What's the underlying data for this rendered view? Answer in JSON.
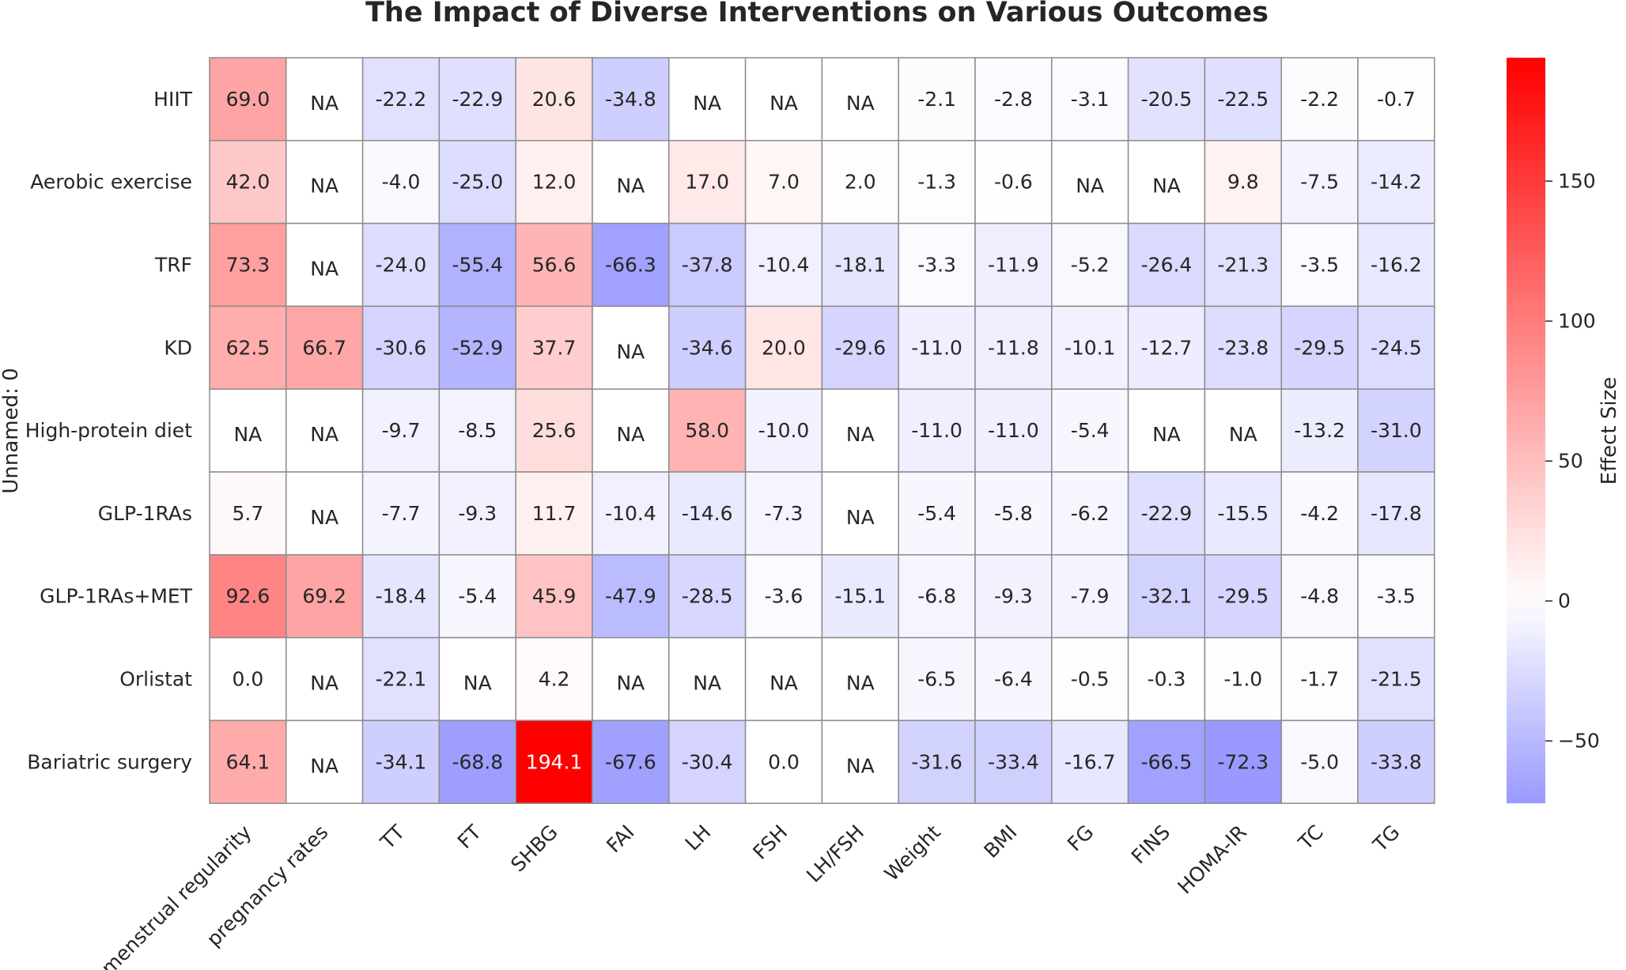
{
  "chart_data": {
    "type": "heatmap",
    "title": "The Impact of Diverse Interventions on Various Outcomes",
    "ylabel": "Unnamed: 0",
    "colorbar_label": "Effect Size",
    "colormap": {
      "min_color": "#9999ff",
      "mid_color": "#ffffff",
      "max_color": "#ff0000"
    },
    "vmin": -72.3,
    "vcenter": 0,
    "vmax": 194.1,
    "colorbar_ticks": [
      -50,
      0,
      50,
      100,
      150
    ],
    "colorbar_tick_labels": [
      "−50",
      "0",
      "50",
      "100",
      "150"
    ],
    "na_label": "NA",
    "columns": [
      "menstrual regularity",
      "pregnancy rates",
      "TT",
      "FT",
      "SHBG",
      "FAI",
      "LH",
      "FSH",
      "LH/FSH",
      "Weight",
      "BMI",
      "FG",
      "FINS",
      "HOMA-IR",
      "TC",
      "TG"
    ],
    "rows": [
      "HIIT",
      "Aerobic exercise",
      "TRF",
      "KD",
      "High-protein diet",
      "GLP-1RAs",
      "GLP-1RAs+MET",
      "Orlistat",
      "Bariatric surgery"
    ],
    "values": [
      [
        69.0,
        null,
        -22.2,
        -22.9,
        20.6,
        -34.8,
        null,
        null,
        null,
        -2.1,
        -2.8,
        -3.1,
        -20.5,
        -22.5,
        -2.2,
        -0.7
      ],
      [
        42.0,
        null,
        -4.0,
        -25.0,
        12.0,
        null,
        17.0,
        7.0,
        2.0,
        -1.3,
        -0.6,
        null,
        null,
        9.8,
        -7.5,
        -14.2
      ],
      [
        73.3,
        null,
        -24.0,
        -55.4,
        56.6,
        -66.3,
        -37.8,
        -10.4,
        -18.1,
        -3.3,
        -11.9,
        -5.2,
        -26.4,
        -21.3,
        -3.5,
        -16.2
      ],
      [
        62.5,
        66.7,
        -30.6,
        -52.9,
        37.7,
        null,
        -34.6,
        20.0,
        -29.6,
        -11.0,
        -11.8,
        -10.1,
        -12.7,
        -23.8,
        -29.5,
        -24.5
      ],
      [
        null,
        null,
        -9.7,
        -8.5,
        25.6,
        null,
        58.0,
        -10.0,
        null,
        -11.0,
        -11.0,
        -5.4,
        null,
        null,
        -13.2,
        -31.0
      ],
      [
        5.7,
        null,
        -7.7,
        -9.3,
        11.7,
        -10.4,
        -14.6,
        -7.3,
        null,
        -5.4,
        -5.8,
        -6.2,
        -22.9,
        -15.5,
        -4.2,
        -17.8
      ],
      [
        92.6,
        69.2,
        -18.4,
        -5.4,
        45.9,
        -47.9,
        -28.5,
        -3.6,
        -15.1,
        -6.8,
        -9.3,
        -7.9,
        -32.1,
        -29.5,
        -4.8,
        -3.5
      ],
      [
        0.0,
        null,
        -22.1,
        null,
        4.2,
        null,
        null,
        null,
        null,
        -6.5,
        -6.4,
        -0.5,
        -0.3,
        -1.0,
        -1.7,
        -21.5
      ],
      [
        64.1,
        null,
        -34.1,
        -68.8,
        194.1,
        -67.6,
        -30.4,
        0.0,
        null,
        -31.6,
        -33.4,
        -16.7,
        -66.5,
        -72.3,
        -5.0,
        -33.8
      ]
    ]
  }
}
